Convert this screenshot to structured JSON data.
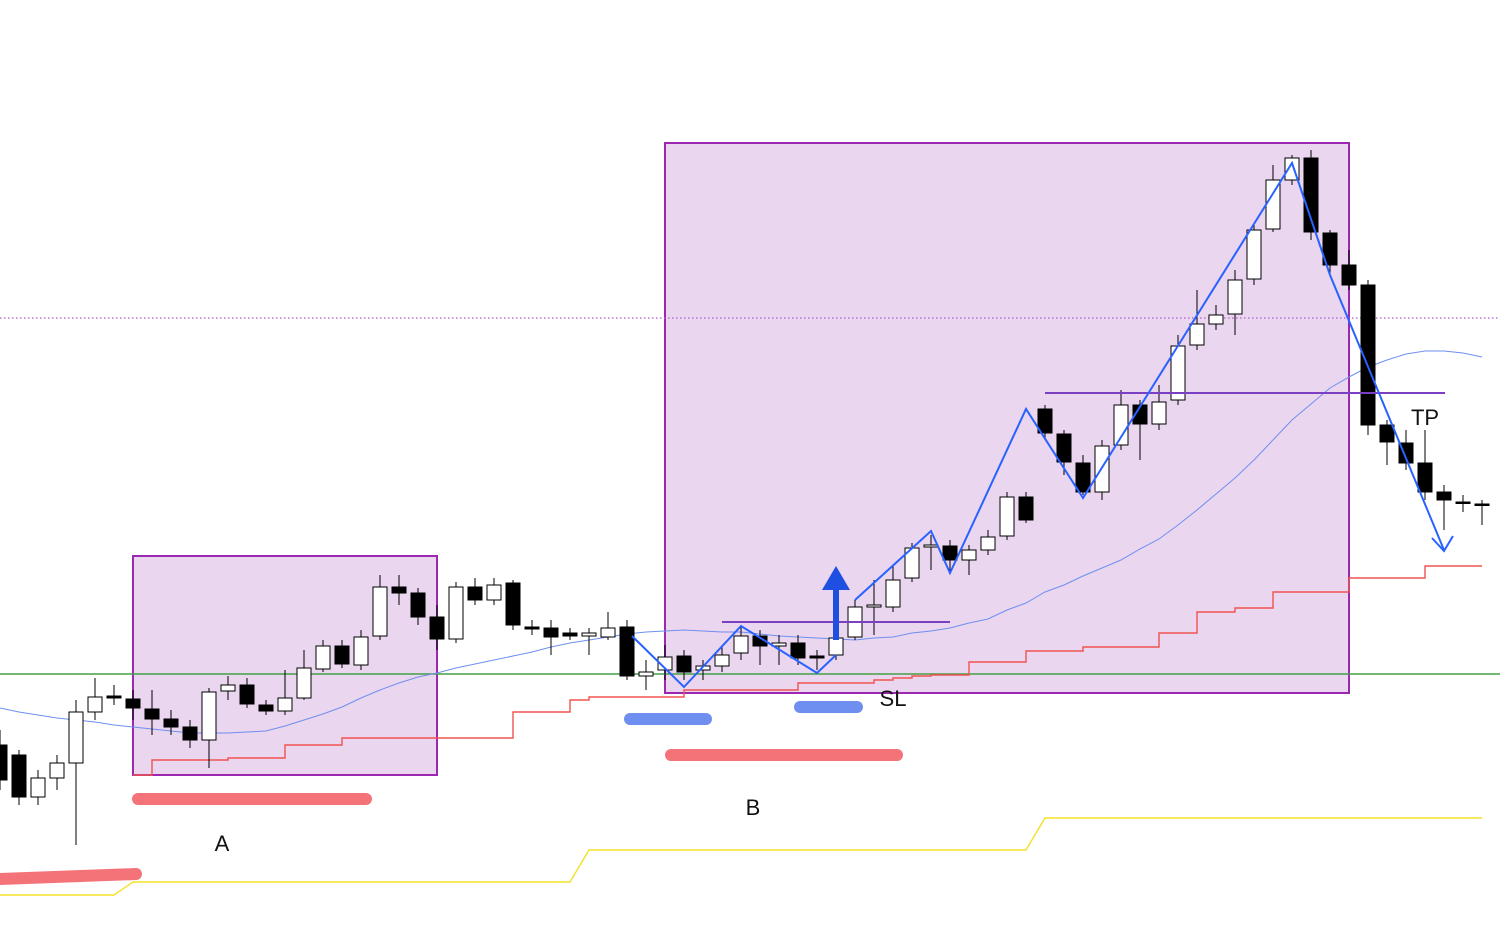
{
  "chart_data": {
    "type": "candlestick",
    "ylim": [
      49,
      1000
    ],
    "up_color": "#ffffff",
    "down_color": "#000000",
    "open": [
      255,
      245,
      203,
      222,
      237,
      288,
      304,
      301,
      291,
      281,
      273,
      260,
      309,
      315,
      295,
      289,
      302,
      331,
      354,
      335,
      364,
      413,
      407,
      383,
      361,
      413,
      400,
      417,
      373,
      372,
      367,
      364,
      363,
      373,
      324,
      330,
      344,
      330,
      334,
      347,
      364,
      354,
      357,
      344,
      345,
      363,
      393,
      393,
      422,
      453,
      454,
      440,
      450,
      464,
      503,
      591,
      566,
      537,
      508,
      555,
      595,
      576,
      600,
      655,
      676,
      686,
      721,
      771,
      820,
      842,
      767,
      735,
      715,
      575,
      557,
      537,
      508,
      498,
      496
    ],
    "high": [
      270,
      250,
      230,
      245,
      300,
      322,
      315,
      310,
      310,
      290,
      280,
      312,
      324,
      322,
      300,
      330,
      350,
      360,
      360,
      370,
      425,
      425,
      412,
      395,
      418,
      422,
      422,
      420,
      380,
      380,
      372,
      372,
      388,
      380,
      340,
      355,
      350,
      340,
      355,
      375,
      370,
      365,
      365,
      350,
      370,
      400,
      420,
      435,
      457,
      465,
      460,
      455,
      470,
      508,
      508,
      595,
      570,
      545,
      560,
      610,
      600,
      615,
      665,
      710,
      695,
      730,
      775,
      835,
      845,
      850,
      770,
      750,
      720,
      580,
      570,
      570,
      515,
      505,
      500
    ],
    "low": [
      210,
      195,
      195,
      210,
      155,
      280,
      295,
      280,
      265,
      265,
      252,
      232,
      300,
      292,
      285,
      285,
      300,
      328,
      332,
      330,
      360,
      395,
      375,
      350,
      357,
      395,
      395,
      370,
      365,
      345,
      360,
      345,
      360,
      320,
      310,
      320,
      320,
      320,
      328,
      340,
      335,
      335,
      335,
      330,
      340,
      360,
      365,
      388,
      418,
      430,
      428,
      425,
      445,
      460,
      477,
      560,
      525,
      505,
      500,
      550,
      540,
      570,
      595,
      650,
      670,
      665,
      715,
      768,
      815,
      760,
      725,
      710,
      565,
      535,
      530,
      500,
      470,
      488,
      475
    ],
    "close": [
      220,
      203,
      222,
      237,
      288,
      303,
      302,
      292,
      281,
      273,
      260,
      308,
      315,
      296,
      289,
      302,
      332,
      354,
      336,
      363,
      413,
      407,
      383,
      361,
      413,
      400,
      415,
      375,
      371,
      363,
      364,
      367,
      372,
      324,
      328,
      343,
      328,
      334,
      345,
      364,
      354,
      357,
      342,
      342,
      362,
      393,
      395,
      420,
      452,
      455,
      440,
      450,
      463,
      503,
      480,
      567,
      538,
      508,
      554,
      595,
      576,
      598,
      654,
      676,
      685,
      720,
      770,
      820,
      842,
      768,
      735,
      715,
      575,
      558,
      537,
      508,
      500,
      497,
      495
    ],
    "series": [
      {
        "color": "#6f8ff0",
        "values": [
          292,
          288,
          285,
          282,
          280,
          278,
          275,
          273,
          271,
          269,
          267,
          267,
          267,
          268,
          269,
          274,
          280,
          286,
          293,
          302,
          310,
          317,
          323,
          327,
          332,
          336,
          340,
          344,
          348,
          353,
          357,
          360,
          363,
          366,
          368,
          369,
          370,
          369,
          368,
          368,
          366,
          364,
          363,
          362,
          361,
          360,
          362,
          363,
          367,
          369,
          372,
          377,
          381,
          390,
          397,
          408,
          415,
          424,
          432,
          440,
          451,
          461,
          475,
          490,
          506,
          522,
          540,
          560,
          580,
          596,
          612,
          623,
          633,
          640,
          646,
          649,
          649,
          647,
          643
        ]
      },
      {
        "color": "#ef5350",
        "step": true,
        "values": [
          null,
          null,
          null,
          null,
          null,
          null,
          null,
          225,
          240,
          240,
          240,
          240,
          242,
          242,
          242,
          255,
          255,
          255,
          262,
          262,
          262,
          262,
          262,
          262,
          262,
          262,
          262,
          288,
          288,
          288,
          300,
          303,
          303,
          303,
          303,
          303,
          310,
          310,
          310,
          310,
          310,
          310,
          317,
          317,
          317,
          317,
          320,
          322,
          324,
          325,
          325,
          338,
          338,
          338,
          349,
          349,
          349,
          353,
          353,
          353,
          353,
          367,
          367,
          388,
          388,
          392,
          392,
          408,
          408,
          408,
          408,
          422,
          422,
          422,
          422,
          434,
          434,
          434,
          434
        ]
      },
      {
        "color": "#f5e12a",
        "values": [
          105,
          105,
          105,
          105,
          105,
          105,
          105,
          118,
          118,
          118,
          118,
          118,
          118,
          118,
          118,
          118,
          118,
          118,
          118,
          118,
          118,
          118,
          118,
          118,
          118,
          118,
          118,
          118,
          118,
          118,
          118,
          150,
          150,
          150,
          150,
          150,
          150,
          150,
          150,
          150,
          150,
          150,
          150,
          150,
          150,
          150,
          150,
          150,
          150,
          150,
          150,
          150,
          150,
          150,
          150,
          182,
          182,
          182,
          182,
          182,
          182,
          182,
          182,
          182,
          182,
          182,
          182,
          182,
          182,
          182,
          182,
          182,
          182,
          182,
          182,
          182,
          182,
          182,
          182
        ]
      }
    ],
    "levels": [
      {
        "value": 326,
        "color": "#43a047"
      },
      {
        "value": 682,
        "color": "#b05bd0",
        "dotted": true
      }
    ],
    "annotations": [
      "A",
      "B",
      "SL",
      "TP"
    ]
  }
}
